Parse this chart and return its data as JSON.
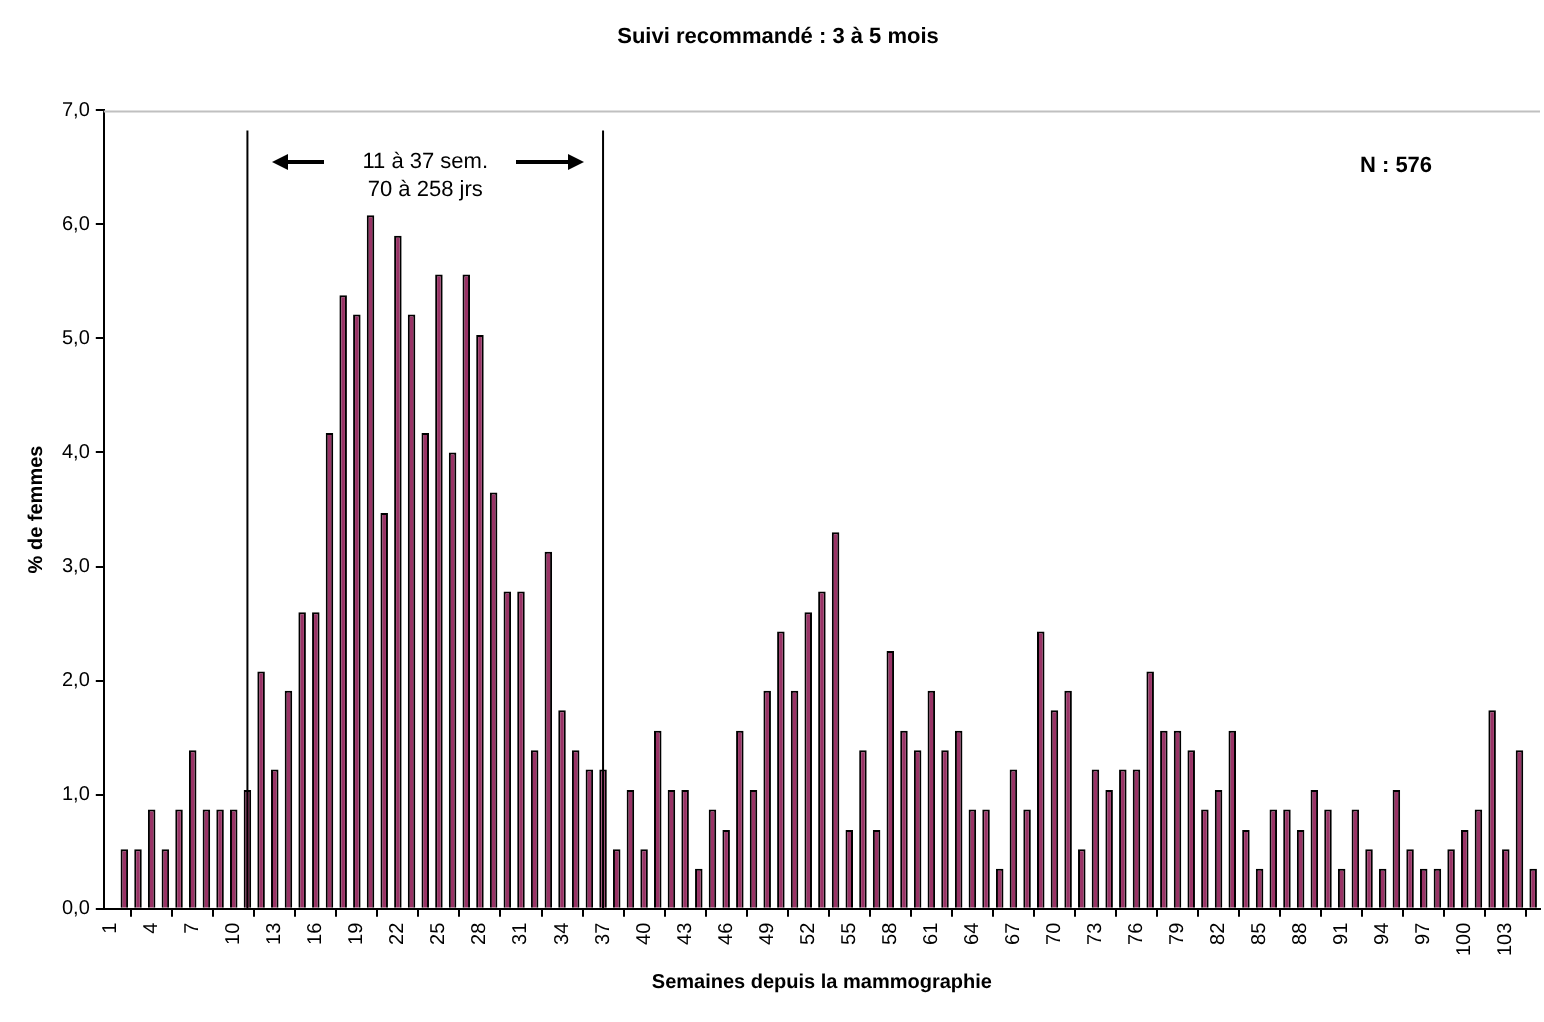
{
  "chart_data": {
    "type": "bar",
    "title": "Suivi recommandé : 3 à 5 mois",
    "xlabel": "Semaines depuis la mammographie",
    "ylabel": "% de femmes",
    "x": [
      1,
      2,
      3,
      4,
      5,
      6,
      7,
      8,
      9,
      10,
      11,
      12,
      13,
      14,
      15,
      16,
      17,
      18,
      19,
      20,
      21,
      22,
      23,
      24,
      25,
      26,
      27,
      28,
      29,
      30,
      31,
      32,
      33,
      34,
      35,
      36,
      37,
      38,
      39,
      40,
      41,
      42,
      43,
      44,
      45,
      46,
      47,
      48,
      49,
      50,
      51,
      52,
      53,
      54,
      55,
      56,
      57,
      58,
      59,
      60,
      61,
      62,
      63,
      64,
      65,
      66,
      67,
      68,
      69,
      70,
      71,
      72,
      73,
      74,
      75,
      76,
      77,
      78,
      79,
      80,
      81,
      82,
      83,
      84,
      85,
      86,
      87,
      88,
      89,
      90,
      91,
      92,
      93,
      94,
      95,
      96,
      97,
      98,
      99,
      100,
      101,
      102,
      103,
      104,
      105
    ],
    "values": [
      0,
      0.52,
      0.52,
      0.87,
      0.52,
      0.87,
      1.39,
      0.87,
      0.87,
      0.87,
      1.04,
      2.08,
      1.22,
      1.91,
      2.6,
      2.6,
      4.17,
      5.38,
      5.21,
      6.08,
      3.47,
      5.9,
      5.21,
      4.17,
      5.56,
      4.0,
      5.56,
      5.03,
      3.65,
      2.78,
      2.78,
      1.39,
      3.13,
      1.74,
      1.39,
      1.22,
      1.22,
      0.52,
      1.04,
      0.52,
      1.56,
      1.04,
      1.04,
      0.35,
      0.87,
      0.69,
      1.56,
      1.04,
      1.91,
      2.43,
      1.91,
      2.6,
      2.78,
      3.3,
      0.69,
      1.39,
      0.69,
      2.26,
      1.56,
      1.39,
      1.91,
      1.39,
      1.56,
      0.87,
      0.87,
      0.35,
      1.22,
      0.87,
      2.43,
      1.74,
      1.91,
      0.52,
      1.22,
      1.04,
      1.22,
      1.22,
      2.08,
      1.56,
      1.56,
      1.39,
      0.87,
      1.04,
      1.56,
      0.69,
      0.35,
      0.87,
      0.87,
      0.69,
      1.04,
      0.87,
      0.35,
      0.87,
      0.52,
      0.35,
      1.04,
      0.52,
      0.35,
      0.35,
      0.52,
      0.69,
      0.87,
      1.74,
      0.52,
      1.39,
      0.35
    ],
    "color": "#993366",
    "xlim": [
      0.5,
      105.5
    ],
    "xticks": [
      1,
      4,
      7,
      10,
      13,
      16,
      19,
      22,
      25,
      28,
      31,
      34,
      37,
      40,
      43,
      46,
      49,
      52,
      55,
      58,
      61,
      64,
      67,
      70,
      73,
      76,
      79,
      82,
      85,
      88,
      91,
      94,
      97,
      100,
      103
    ],
    "ylim": [
      0,
      7
    ],
    "yticks": [
      {
        "value": 0,
        "label": "0,0"
      },
      {
        "value": 1,
        "label": "1,0"
      },
      {
        "value": 2,
        "label": "2,0"
      },
      {
        "value": 3,
        "label": "3,0"
      },
      {
        "value": 4,
        "label": "4,0"
      },
      {
        "value": 5,
        "label": "5,0"
      },
      {
        "value": 6,
        "label": "6,0"
      },
      {
        "value": 7,
        "label": "7,0"
      }
    ],
    "ref_lines": [
      {
        "axis": "x",
        "value": 11,
        "color": "#000000"
      },
      {
        "axis": "x",
        "value": 37,
        "color": "#000000"
      }
    ],
    "annotations": [
      "11 à 37 sem.",
      "70 à 258 jrs",
      "N : 576"
    ],
    "grid": false,
    "legend": false
  }
}
